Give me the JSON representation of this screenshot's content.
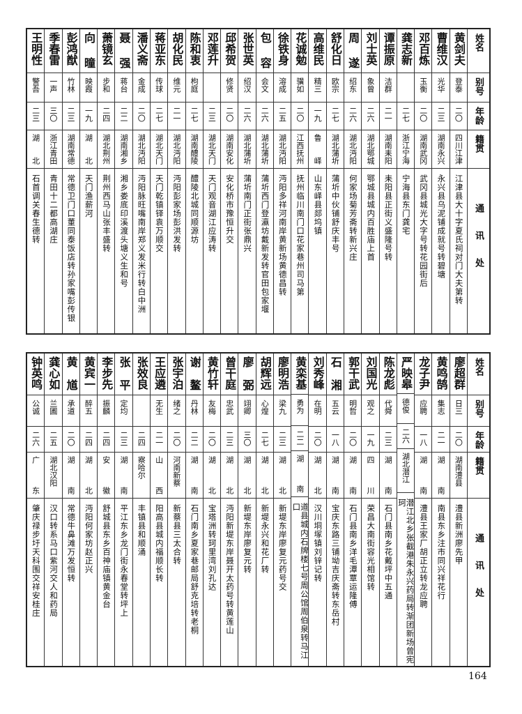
{
  "headers": {
    "name": "姓名",
    "alias": "别号",
    "age": "年龄",
    "native": "籍贯",
    "address": "通讯处"
  },
  "top_table": [
    {
      "name": "黄剑夫",
      "alias": "登泰",
      "age": "二〇",
      "native": "四川江津",
      "address": "江津县大十字夏氏祠对门大夫第转"
    },
    {
      "name": "曹维汉",
      "alias": "光华",
      "age": "二三",
      "native": "湖南永兴",
      "address": "永兴县乌泥铺成就号转碧塘"
    },
    {
      "name": "邓百炼",
      "alias": "玉衡",
      "age": "二〇",
      "native": "湖南武冈",
      "address": "武冈县城光大字号转花园街后"
    },
    {
      "name": "龚志新",
      "alias": "",
      "age": "二七",
      "native": "浙江宁海",
      "address": "宁海县东门龚宅"
    },
    {
      "name": "谭振原",
      "alias": "洁群",
      "age": "二一",
      "native": "湖南耒阳",
      "address": "耒阳县正街义盛隆号转"
    },
    {
      "name": "刘士英",
      "alias": "象曾",
      "age": "二六",
      "native": "湖北鄂城",
      "address": "鄂城县城内百胜庙上首"
    },
    {
      "name": "周遂",
      "alias": "绍东",
      "age": "二六",
      "native": "湖北沔阳",
      "address": "何家场菊芳斋转新兴庄"
    },
    {
      "name": "舒化日",
      "alias": "欧宗",
      "age": "二七",
      "native": "湖北蒲圻",
      "address": "蒲圻中伙铺舒庆丰号"
    },
    {
      "name": "高维民",
      "alias": "精三",
      "age": "一九",
      "native": "鲁峄",
      "address": "山东峄县郯坞镇"
    },
    {
      "name": "花诚勉",
      "alias": "骥如",
      "age": "二〇",
      "native": "江西抚州",
      "address": "抚州临川南门口花家巷州司马第"
    },
    {
      "name": "徐铁身",
      "alias": "溶成",
      "age": "二五",
      "native": "湖北沔阳",
      "address": "沔阳多祥河南岸黄新场黄德昌转"
    },
    {
      "name": "包容",
      "alias": "会文",
      "age": "二六",
      "native": "湖北蒲圻",
      "address": "蒲圻西门登瀛坊戴新发转官田包家堰"
    },
    {
      "name": "张世英",
      "alias": "绍汉",
      "age": "二六",
      "native": "湖北蒲圻",
      "address": "蒲圻南门正街张鼎兴"
    },
    {
      "name": "邱希贺",
      "alias": "修贤",
      "age": "二〇",
      "native": "湖南安化",
      "address": "安化桥市豫恒升交"
    },
    {
      "name": "邓莲升",
      "alias": "",
      "age": "二三",
      "native": "湖北天门",
      "address": "天门观音湖江应涛转"
    },
    {
      "name": "陈和衷",
      "alias": "枸庭",
      "age": "二七",
      "native": "湖南醴陵",
      "address": "醴陵北城同顺源坊"
    },
    {
      "name": "胡化民",
      "alias": "维元",
      "age": "二一",
      "native": "湖北沔阳",
      "address": "沔阳彭家场彭洪发转"
    },
    {
      "name": "蒋亚东",
      "alias": "传球",
      "age": "二七",
      "native": "湖北天门",
      "address": "天门乾镇铎袁万顺交"
    },
    {
      "name": "潘义斋",
      "alias": "金成",
      "age": "二〇",
      "native": "湖北沔阳",
      "address": "沔阳脉旺嘴南岸郑义发米行转白中洲"
    },
    {
      "name": "聂强",
      "alias": "蒋台",
      "age": "二二",
      "native": "湖南湘乡",
      "address": "湘乡娄底印溪渡头塘义生和号"
    },
    {
      "name": "萧镜玄",
      "alias": "步和",
      "age": "二四",
      "native": "湖北荆州",
      "address": "荆州西马山张丰盛转"
    },
    {
      "name": "向曈",
      "alias": "映霞",
      "age": "一九",
      "native": "湖北",
      "address": "天门渔薪河"
    },
    {
      "name": "彭鸿猷",
      "alias": "竹林",
      "age": "二三",
      "native": "湖南常德",
      "address": "常德卫门口董同泰饭店转孙家嘴彭传银"
    },
    {
      "name": "季春雷",
      "alias": "一声",
      "age": "三〇",
      "native": "浙江青田",
      "address": "青田十二都高湖庄"
    },
    {
      "name": "王明性",
      "alias": "警吾",
      "age": "二三",
      "native": "湖北",
      "address": "石首调关春生德转"
    }
  ],
  "bottom_table": [
    {
      "name": "廖超群",
      "alias": "日三",
      "age": "二〇",
      "native": "湖南澧县",
      "address": "澧县新洲廖先甲"
    },
    {
      "name": "黄鸣鹄",
      "alias": "集志",
      "age": "二一",
      "native": "湖南",
      "address": "南县东乡注市同兴祥花行"
    },
    {
      "name": "龙子尹",
      "alias": "应聘",
      "age": "一八",
      "native": "湖南",
      "address": "澧县王家厂胡正立转龙应聘"
    },
    {
      "name": "严映皋",
      "alias": "德俊",
      "age": "二六",
      "native": "湖北潜江",
      "address": "潜江北乡张截港朱永兴药局转渐团新场曾宪珂"
    },
    {
      "name": "陈龙彪",
      "alias": "代舜",
      "age": "二三",
      "native": "湖南",
      "address": "石门县南乡花戴坪中五通"
    },
    {
      "name": "刘国光",
      "alias": "观之",
      "age": "一九",
      "native": "四川",
      "address": "荣昌大南街容光相馆转"
    },
    {
      "name": "郭干武",
      "alias": "明哲",
      "age": "二〇",
      "native": "湖南",
      "address": "石门县南乡洋毛潭覃运隆傅"
    },
    {
      "name": "石湘",
      "alias": "五云",
      "age": "一八",
      "native": "湖南",
      "address": "宝庆东路三铺坳吉庆斋转东岳村"
    },
    {
      "name": "刘秀峰",
      "alias": "在明",
      "age": "二〇",
      "native": "湖北",
      "address": "汉川垌塚镇刘锌记转"
    },
    {
      "name": "黄栾基",
      "alias": "勇为",
      "age": "二二",
      "native": "湖南",
      "address": "道县城内石牌楼七号周公馆周伯泉转马江口"
    },
    {
      "name": "廖明浩",
      "alias": "梁九",
      "age": "二三",
      "native": "湖北",
      "address": "新堤东岸廖复元药号交"
    },
    {
      "name": "胡辉远",
      "alias": "心煌",
      "age": "二七",
      "native": "湖北",
      "address": "新堤永兴和花厂转"
    },
    {
      "name": "廖弼",
      "alias": "翊卿",
      "age": "三〇",
      "native": "湖北",
      "address": "新堤东岸廖复元转"
    },
    {
      "name": "曾干庭",
      "alias": "忠武",
      "age": "二三",
      "native": "湖北",
      "address": "沔阳新堤东岸聂开太药号转黄莲山"
    },
    {
      "name": "黄竹轩",
      "alias": "友梅",
      "age": "二〇",
      "native": "湖北",
      "address": "宝塔洲转珂里湾刘孔达"
    },
    {
      "name": "谢鳌",
      "alias": "丹林",
      "age": "二二",
      "native": "湖南",
      "address": "石门南乡夏家巷邮局舒克培转老桐"
    },
    {
      "name": "张宇泊",
      "alias": "绪之",
      "age": "二〇",
      "native": "河南新蔡",
      "address": "新蔡县三太合转"
    },
    {
      "name": "王应遴",
      "alias": "无生",
      "age": "二一",
      "native": "山西",
      "address": "阳高县城内福顺长转"
    },
    {
      "name": "张效良",
      "alias": "",
      "age": "二四",
      "native": "察哈尔",
      "address": "丰镇县和顺涌"
    },
    {
      "name": "张平",
      "alias": "定均",
      "age": "二三",
      "native": "湖南",
      "address": "平江东乡龙门街永春堂转坪上"
    },
    {
      "name": "李步先",
      "alias": "振麟",
      "age": "二四",
      "native": "安徽",
      "address": "舒城县东乡百神庙镇黄金台"
    },
    {
      "name": "黄宾一",
      "alias": "醉五",
      "age": "二四",
      "native": "湖北",
      "address": "沔阳何家坊赵正兴"
    },
    {
      "name": "黄馗",
      "alias": "承道",
      "age": "二〇",
      "native": "湖南",
      "address": "常德牛鼻滩万发恒转"
    },
    {
      "name": "龚心如",
      "alias": "兰圃",
      "age": "二五",
      "native": "湖北汉阳",
      "address": "汉口转系马口紫河交人和药局"
    },
    {
      "name": "钟英鸣",
      "alias": "公诚",
      "age": "二六",
      "native": "广东",
      "address": "肇庆禄步圩天科围交祥安桂庄"
    }
  ],
  "page_number": "164"
}
